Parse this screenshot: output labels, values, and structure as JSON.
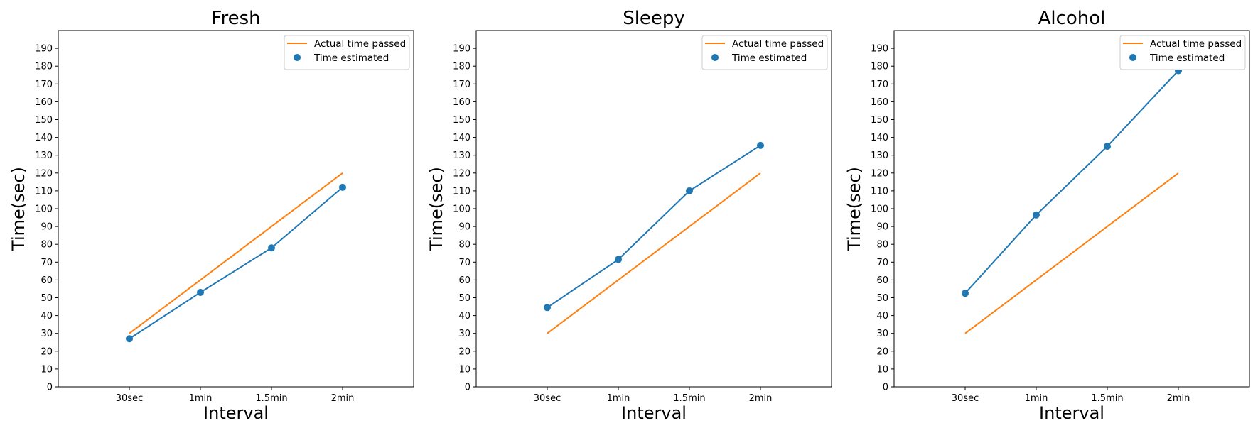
{
  "chart_data": [
    {
      "type": "line",
      "title": "Fresh",
      "xlabel": "Interval",
      "ylabel": "Time(sec)",
      "categories": [
        "30sec",
        "1min",
        "1.5min",
        "2min"
      ],
      "ylim": [
        0,
        200
      ],
      "yticks": [
        0,
        10,
        20,
        30,
        40,
        50,
        60,
        70,
        80,
        90,
        100,
        110,
        120,
        130,
        140,
        150,
        160,
        170,
        180,
        190
      ],
      "grid": false,
      "legend_position": "top-right",
      "series": [
        {
          "name": "Actual time passed",
          "kind": "line",
          "color": "#ff7f0e",
          "values": [
            30,
            60,
            90,
            120
          ]
        },
        {
          "name": "Time estimated",
          "kind": "line-markers",
          "color": "#1f77b4",
          "values": [
            27,
            53,
            78,
            112
          ]
        }
      ]
    },
    {
      "type": "line",
      "title": "Sleepy",
      "xlabel": "Interval",
      "ylabel": "Time(sec)",
      "categories": [
        "30sec",
        "1min",
        "1.5min",
        "2min"
      ],
      "ylim": [
        0,
        200
      ],
      "yticks": [
        0,
        10,
        20,
        30,
        40,
        50,
        60,
        70,
        80,
        90,
        100,
        110,
        120,
        130,
        140,
        150,
        160,
        170,
        180,
        190
      ],
      "grid": false,
      "legend_position": "top-right",
      "series": [
        {
          "name": "Actual time passed",
          "kind": "line",
          "color": "#ff7f0e",
          "values": [
            30,
            60,
            90,
            120
          ]
        },
        {
          "name": "Time estimated",
          "kind": "line-markers",
          "color": "#1f77b4",
          "values": [
            44.5,
            71.5,
            110,
            135.5
          ]
        }
      ]
    },
    {
      "type": "line",
      "title": "Alcohol",
      "xlabel": "Interval",
      "ylabel": "Time(sec)",
      "categories": [
        "30sec",
        "1min",
        "1.5min",
        "2min"
      ],
      "ylim": [
        0,
        200
      ],
      "yticks": [
        0,
        10,
        20,
        30,
        40,
        50,
        60,
        70,
        80,
        90,
        100,
        110,
        120,
        130,
        140,
        150,
        160,
        170,
        180,
        190
      ],
      "grid": false,
      "legend_position": "top-right",
      "series": [
        {
          "name": "Actual time passed",
          "kind": "line",
          "color": "#ff7f0e",
          "values": [
            30,
            60,
            90,
            120
          ]
        },
        {
          "name": "Time estimated",
          "kind": "line-markers",
          "color": "#1f77b4",
          "values": [
            52.5,
            96.5,
            135,
            177.5
          ]
        }
      ]
    }
  ]
}
